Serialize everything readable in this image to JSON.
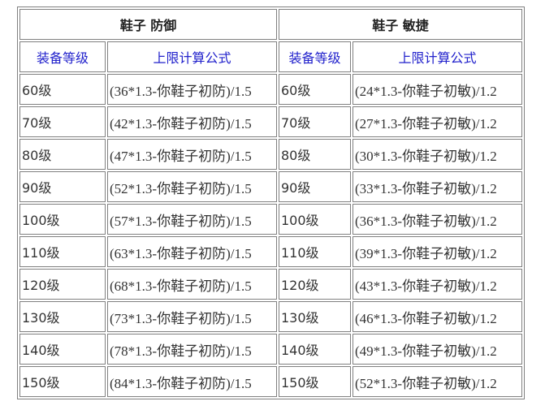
{
  "headers": {
    "defense": "鞋子 防御",
    "agility": "鞋子 敏捷"
  },
  "subheaders": {
    "level": "装备等级",
    "formula": "上限计算公式"
  },
  "rows": [
    {
      "level": "60级",
      "def": "(36*1.3-你鞋子初防)/1.5",
      "agi": "(24*1.3-你鞋子初敏)/1.2"
    },
    {
      "level": "70级",
      "def": "(42*1.3-你鞋子初防)/1.5",
      "agi": "(27*1.3-你鞋子初敏)/1.2"
    },
    {
      "level": "80级",
      "def": "(47*1.3-你鞋子初防)/1.5",
      "agi": "(30*1.3-你鞋子初敏)/1.2"
    },
    {
      "level": "90级",
      "def": "(52*1.3-你鞋子初防)/1.5",
      "agi": "(33*1.3-你鞋子初敏)/1.2"
    },
    {
      "level": "100级",
      "def": "(57*1.3-你鞋子初防)/1.5",
      "agi": "(36*1.3-你鞋子初敏)/1.2"
    },
    {
      "level": "110级",
      "def": "(63*1.3-你鞋子初防)/1.5",
      "agi": "(39*1.3-你鞋子初敏)/1.2"
    },
    {
      "level": "120级",
      "def": "(68*1.3-你鞋子初防)/1.5",
      "agi": "(43*1.3-你鞋子初敏)/1.2"
    },
    {
      "level": "130级",
      "def": "(73*1.3-你鞋子初防)/1.5",
      "agi": "(46*1.3-你鞋子初敏)/1.2"
    },
    {
      "level": "140级",
      "def": "(78*1.3-你鞋子初防)/1.5",
      "agi": "(49*1.3-你鞋子初敏)/1.2"
    },
    {
      "level": "150级",
      "def": "(84*1.3-你鞋子初防)/1.5",
      "agi": "(52*1.3-你鞋子初敏)/1.2"
    }
  ]
}
